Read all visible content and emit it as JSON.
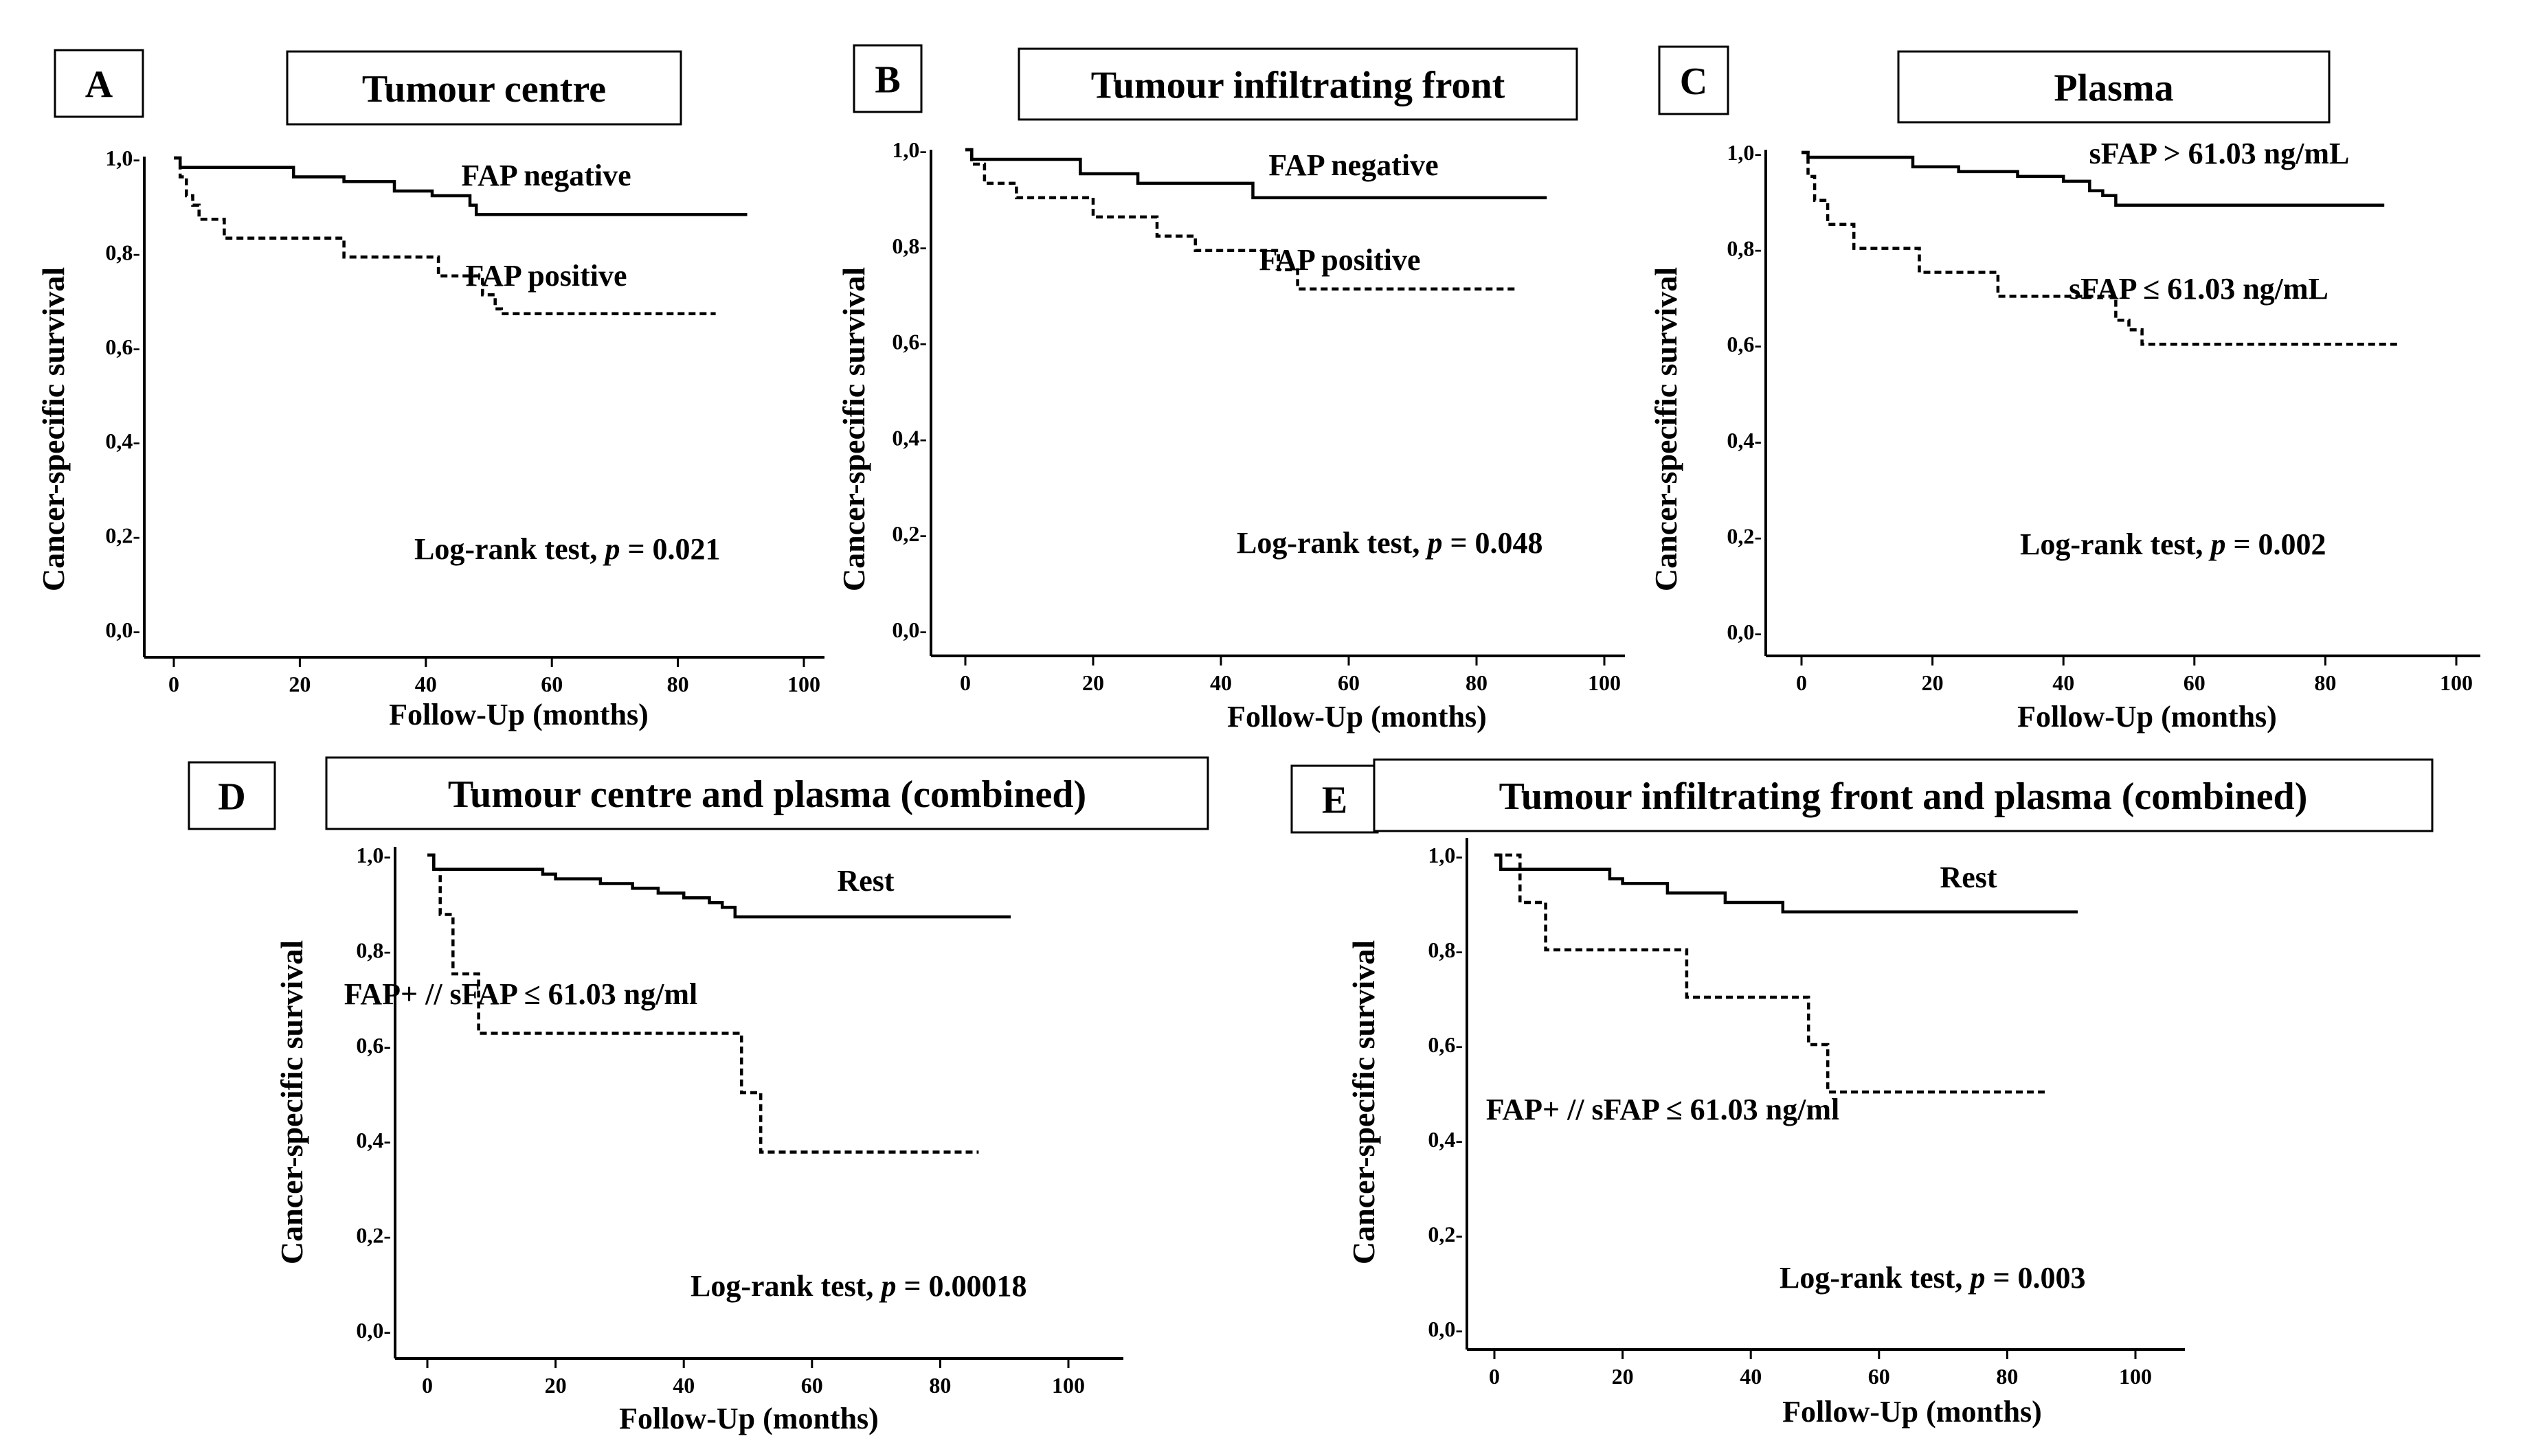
{
  "chart_data": [
    {
      "type": "line",
      "letter": "A",
      "title": "Tumour centre",
      "xlabel": "Follow-Up  (months)",
      "ylabel": "Cancer-specific  survival",
      "xlim": [
        0,
        100
      ],
      "ylim": [
        0.0,
        1.0
      ],
      "xticks": [
        "0",
        "20",
        "40",
        "60",
        "80",
        "100"
      ],
      "yticks": [
        "0,0-",
        "0,2-",
        "0,4-",
        "0,6-",
        "0,8-",
        "1,0-"
      ],
      "annotation": {
        "prefix": "Log-rank test,",
        "p_symbol": "p",
        "p_value": "= 0.021"
      },
      "series": [
        {
          "name": "FAP negative",
          "style": "solid",
          "x": [
            0,
            1,
            18,
            19,
            27,
            35,
            41,
            47,
            48,
            91
          ],
          "y": [
            1.0,
            0.98,
            0.98,
            0.96,
            0.95,
            0.93,
            0.92,
            0.9,
            0.88,
            0.88
          ]
        },
        {
          "name": "FAP positive",
          "style": "dashed",
          "x": [
            0,
            1,
            2,
            3,
            4,
            8,
            27,
            42,
            49,
            51,
            52,
            86
          ],
          "y": [
            1.0,
            0.96,
            0.92,
            0.9,
            0.87,
            0.83,
            0.79,
            0.75,
            0.71,
            0.68,
            0.67,
            0.67
          ]
        }
      ]
    },
    {
      "type": "line",
      "letter": "B",
      "title": "Tumour infiltrating  front",
      "xlabel": "Follow-Up  (months)",
      "ylabel": "Cancer-specific  survival",
      "xlim": [
        0,
        100
      ],
      "ylim": [
        0.0,
        1.0
      ],
      "xticks": [
        "0",
        "20",
        "40",
        "60",
        "80",
        "100"
      ],
      "yticks": [
        "0,0-",
        "0,2-",
        "0,4-",
        "0,6-",
        "0,8-",
        "1,0-"
      ],
      "annotation": {
        "prefix": "Log-rank test,",
        "p_symbol": "p",
        "p_value": "= 0.048"
      },
      "series": [
        {
          "name": "FAP negative",
          "style": "solid",
          "x": [
            0,
            1,
            18,
            27,
            45,
            91
          ],
          "y": [
            1.0,
            0.98,
            0.95,
            0.93,
            0.9,
            0.9
          ]
        },
        {
          "name": "FAP positive",
          "style": "dashed",
          "x": [
            0,
            1,
            3,
            8,
            20,
            30,
            36,
            49,
            52,
            86
          ],
          "y": [
            1.0,
            0.97,
            0.93,
            0.9,
            0.86,
            0.82,
            0.79,
            0.75,
            0.71,
            0.71
          ]
        }
      ]
    },
    {
      "type": "line",
      "letter": "C",
      "title": "Plasma",
      "xlabel": "Follow-Up  (months)",
      "ylabel": "Cancer-specific  survival",
      "xlim": [
        0,
        100
      ],
      "ylim": [
        0.0,
        1.0
      ],
      "xticks": [
        "0",
        "20",
        "40",
        "60",
        "80",
        "100"
      ],
      "yticks": [
        "0,0-",
        "0,2-",
        "0,4-",
        "0,6-",
        "0,8-",
        "1,0-"
      ],
      "annotation": {
        "prefix": "Log-rank test,",
        "p_symbol": "p",
        "p_value": "= 0.002"
      },
      "series": [
        {
          "name": "sFAP > 61.03 ng/mL",
          "style": "solid",
          "x": [
            0,
            1,
            17,
            20,
            24,
            33,
            40,
            44,
            46,
            48,
            89
          ],
          "y": [
            1.0,
            0.99,
            0.97,
            0.97,
            0.96,
            0.95,
            0.94,
            0.92,
            0.91,
            0.89,
            0.89
          ]
        },
        {
          "name": "sFAP ≤ 61.03 ng/mL",
          "style": "dashed",
          "x": [
            0,
            1,
            2,
            4,
            8,
            18,
            30,
            48,
            50,
            52,
            91
          ],
          "y": [
            1.0,
            0.95,
            0.9,
            0.85,
            0.8,
            0.75,
            0.7,
            0.65,
            0.63,
            0.6,
            0.6
          ]
        }
      ]
    },
    {
      "type": "line",
      "letter": "D",
      "title": "Tumour centre and plasma (combined)",
      "xlabel": "Follow-Up  (months)",
      "ylabel": "Cancer-specific  survival",
      "xlim": [
        0,
        100
      ],
      "ylim": [
        0.0,
        1.0
      ],
      "xticks": [
        "0",
        "20",
        "40",
        "60",
        "80",
        "100"
      ],
      "yticks": [
        "0,0-",
        "0,2-",
        "0,4-",
        "0,6-",
        "0,8-",
        "1,0-"
      ],
      "annotation": {
        "prefix": "Log-rank test,",
        "p_symbol": "p",
        "p_value": "= 0.00018"
      },
      "series": [
        {
          "name": "Rest",
          "style": "solid",
          "x": [
            0,
            1,
            18,
            20,
            27,
            32,
            36,
            40,
            44,
            46,
            48,
            91
          ],
          "y": [
            1.0,
            0.97,
            0.96,
            0.95,
            0.94,
            0.93,
            0.92,
            0.91,
            0.9,
            0.89,
            0.87,
            0.87
          ]
        },
        {
          "name": "FAP+ // sFAP ≤ 61.03 ng/ml",
          "style": "dashed",
          "x": [
            0,
            1,
            2,
            4,
            8,
            49,
            52,
            86
          ],
          "y": [
            1.0,
            0.97,
            0.875,
            0.75,
            0.625,
            0.5,
            0.375,
            0.375
          ]
        }
      ]
    },
    {
      "type": "line",
      "letter": "E",
      "title": "Tumour infiltrating  front and plasma (combined)",
      "xlabel": "Follow-Up  (months)",
      "ylabel": "Cancer-specific  survival",
      "xlim": [
        0,
        100
      ],
      "ylim": [
        0.0,
        1.0
      ],
      "xticks": [
        "0",
        "20",
        "40",
        "60",
        "80",
        "100"
      ],
      "yticks": [
        "0,0-",
        "0,2-",
        "0,4-",
        "0,6-",
        "0,8-",
        "1,0-"
      ],
      "annotation": {
        "prefix": "Log-rank test,",
        "p_symbol": "p",
        "p_value": "= 0.003"
      },
      "series": [
        {
          "name": "Rest",
          "style": "solid",
          "x": [
            0,
            1,
            18,
            20,
            27,
            36,
            45,
            91
          ],
          "y": [
            1.0,
            0.97,
            0.95,
            0.94,
            0.92,
            0.9,
            0.88,
            0.88
          ]
        },
        {
          "name": "FAP+ // sFAP ≤ 61.03 ng/ml",
          "style": "dashed",
          "x": [
            0,
            4,
            8,
            30,
            49,
            52,
            86
          ],
          "y": [
            1.0,
            0.9,
            0.8,
            0.7,
            0.6,
            0.5,
            0.5
          ]
        }
      ]
    }
  ]
}
